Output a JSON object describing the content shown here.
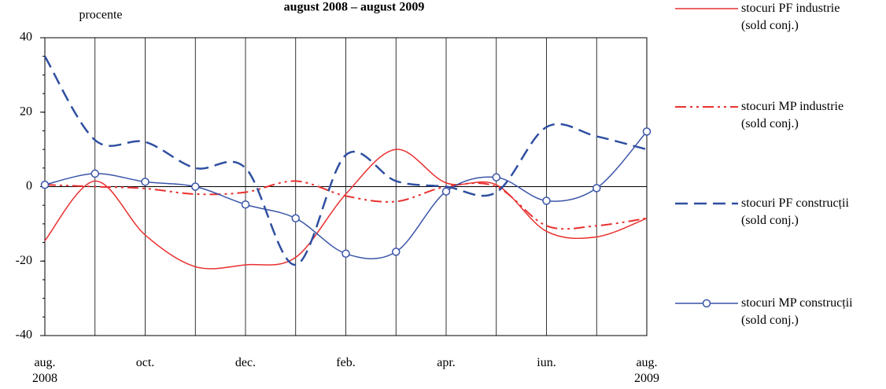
{
  "chart_data": {
    "type": "line",
    "title": "august 2008 – august 2009",
    "y_label": "procente",
    "categories": [
      "aug.\n2008",
      null,
      "oct.",
      null,
      "dec.",
      null,
      "feb.",
      null,
      "apr.",
      null,
      "iun.",
      null,
      "aug.\n2009"
    ],
    "ylim": [
      -40,
      40
    ],
    "yticks": [
      -40,
      -20,
      0,
      20,
      40
    ],
    "grid": true,
    "series": [
      {
        "name": "stocuri PF industrie\n(sold conj.)",
        "color": "#e8312f",
        "style": "solid",
        "marker": "none",
        "values": [
          -14.5,
          1.5,
          -13,
          -21.5,
          -21,
          -19,
          -2,
          10,
          1,
          0.5,
          -12,
          -13.5,
          -8.5
        ]
      },
      {
        "name": "stocuri MP industrie\n(sold conj.)",
        "color": "#e8312f",
        "style": "dashdot",
        "marker": "none",
        "values": [
          0.5,
          0,
          -0.5,
          -2,
          -1.5,
          1.5,
          -2.5,
          -4,
          0,
          0,
          -10.5,
          -10.5,
          -8.5
        ]
      },
      {
        "name": "stocuri PF construcții\n(sold conj.)",
        "color": "#2f4fa0",
        "style": "dashed",
        "marker": "none",
        "values": [
          35,
          12.5,
          12,
          5,
          5,
          -21,
          8.5,
          1.5,
          0,
          -1.5,
          16,
          13.5,
          10
        ]
      },
      {
        "name": "stocuri MP construcții\n(sold conj.)",
        "color": "#3a55a8",
        "style": "solid",
        "marker": "circle",
        "values": [
          0.5,
          3.5,
          1.3,
          0,
          -4.8,
          -8.5,
          -18,
          -17.5,
          -1.3,
          2.5,
          -3.8,
          -0.4,
          14.8
        ]
      }
    ]
  }
}
